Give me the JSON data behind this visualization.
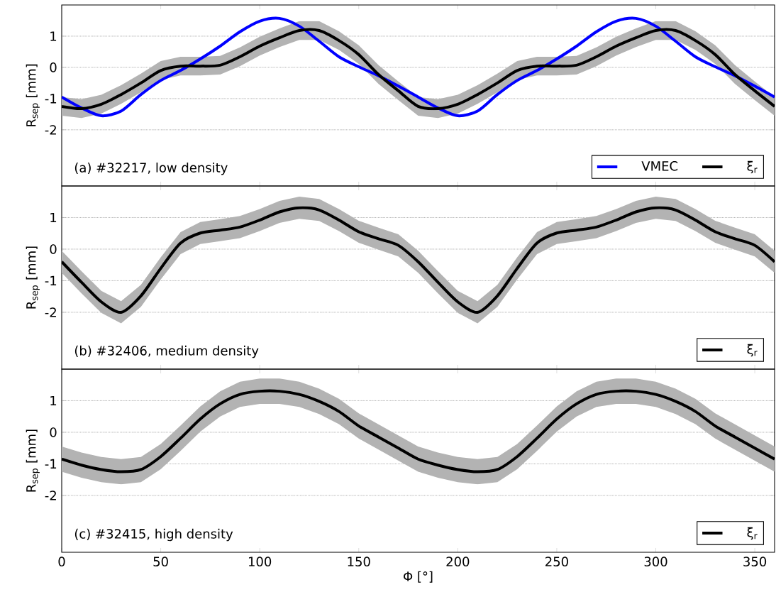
{
  "chart_data": [
    {
      "type": "line",
      "ylabel": "R$_{sep}$ [mm]",
      "annotations": [
        "(a) #32217, low density"
      ],
      "x": [
        0,
        10,
        20,
        30,
        40,
        50,
        60,
        70,
        80,
        90,
        100,
        110,
        120,
        130,
        140,
        150,
        160,
        170,
        180,
        190,
        200,
        210,
        220,
        230,
        240,
        250,
        260,
        270,
        280,
        290,
        300,
        310,
        320,
        330,
        340,
        350,
        360
      ],
      "xlim": [
        0,
        360
      ],
      "ylim": [
        -3.8,
        2
      ],
      "xticks": [
        0,
        50,
        100,
        150,
        200,
        250,
        300,
        350
      ],
      "yticks": [
        -2,
        -1,
        0,
        1
      ],
      "tick_labels": "y",
      "grid": "y",
      "legend": "bottom right",
      "series": [
        {
          "name": "VMEC",
          "color": "#0000ff",
          "values": [
            -0.95,
            -1.3,
            -1.55,
            -1.4,
            -0.87,
            -0.42,
            -0.1,
            0.27,
            0.68,
            1.14,
            1.48,
            1.57,
            1.32,
            0.84,
            0.34,
            0.02,
            -0.27,
            -0.6,
            -0.95,
            -1.3,
            -1.55,
            -1.4,
            -0.87,
            -0.42,
            -0.1,
            0.27,
            0.68,
            1.14,
            1.48,
            1.57,
            1.32,
            0.84,
            0.34,
            0.02,
            -0.27,
            -0.6,
            -0.95
          ]
        },
        {
          "name": "ξ$_{r}$",
          "color": "#000000",
          "values": [
            -1.25,
            -1.32,
            -1.18,
            -0.87,
            -0.5,
            -0.1,
            0.04,
            0.04,
            0.07,
            0.34,
            0.68,
            0.95,
            1.18,
            1.18,
            0.86,
            0.41,
            -0.23,
            -0.75,
            -1.25,
            -1.32,
            -1.18,
            -0.87,
            -0.5,
            -0.1,
            0.04,
            0.04,
            0.07,
            0.34,
            0.68,
            0.95,
            1.18,
            1.18,
            0.86,
            0.41,
            -0.23,
            -0.75,
            -1.25
          ],
          "lower": [
            -1.55,
            -1.62,
            -1.48,
            -1.17,
            -0.8,
            -0.4,
            -0.26,
            -0.26,
            -0.23,
            0.04,
            0.38,
            0.65,
            0.88,
            0.88,
            0.56,
            0.11,
            -0.53,
            -1.05,
            -1.55,
            -1.62,
            -1.48,
            -1.17,
            -0.8,
            -0.4,
            -0.26,
            -0.26,
            -0.23,
            0.04,
            0.38,
            0.65,
            0.88,
            0.88,
            0.56,
            0.11,
            -0.53,
            -1.05,
            -1.55
          ],
          "upper": [
            -0.95,
            -1.02,
            -0.88,
            -0.57,
            -0.2,
            0.2,
            0.34,
            0.34,
            0.37,
            0.64,
            0.98,
            1.25,
            1.48,
            1.48,
            1.16,
            0.71,
            0.07,
            -0.45,
            -0.95,
            -1.02,
            -0.88,
            -0.57,
            -0.2,
            0.2,
            0.34,
            0.34,
            0.37,
            0.64,
            0.98,
            1.25,
            1.48,
            1.48,
            1.16,
            0.71,
            0.07,
            -0.45,
            -0.95
          ]
        }
      ]
    },
    {
      "type": "line",
      "ylabel": "R$_{sep}$ [mm]",
      "annotations": [
        "(b) #32406, medium density"
      ],
      "x": [
        0,
        10,
        20,
        30,
        40,
        50,
        60,
        70,
        80,
        90,
        100,
        110,
        120,
        130,
        140,
        150,
        160,
        170,
        180,
        190,
        200,
        210,
        220,
        230,
        240,
        250,
        260,
        270,
        280,
        290,
        300,
        310,
        320,
        330,
        340,
        350,
        360
      ],
      "xlim": [
        0,
        360
      ],
      "ylim": [
        -3.8,
        2
      ],
      "xticks": [
        0,
        50,
        100,
        150,
        200,
        250,
        300,
        350
      ],
      "yticks": [
        -2,
        -1,
        0,
        1
      ],
      "tick_labels": "y",
      "grid": "y",
      "legend": "bottom right",
      "series": [
        {
          "name": "ξ$_{r}$",
          "color": "#000000",
          "values": [
            -0.4,
            -1.05,
            -1.67,
            -2.0,
            -1.48,
            -0.61,
            0.19,
            0.51,
            0.6,
            0.7,
            0.92,
            1.18,
            1.31,
            1.24,
            0.92,
            0.55,
            0.33,
            0.12,
            -0.4,
            -1.05,
            -1.67,
            -2.0,
            -1.48,
            -0.61,
            0.19,
            0.51,
            0.6,
            0.7,
            0.92,
            1.18,
            1.31,
            1.24,
            0.92,
            0.55,
            0.33,
            0.12,
            -0.4
          ],
          "lower": [
            -0.75,
            -1.4,
            -2.02,
            -2.35,
            -1.83,
            -0.96,
            -0.16,
            0.16,
            0.25,
            0.35,
            0.57,
            0.83,
            0.96,
            0.89,
            0.57,
            0.2,
            -0.02,
            -0.23,
            -0.75,
            -1.4,
            -2.02,
            -2.35,
            -1.83,
            -0.96,
            -0.16,
            0.16,
            0.25,
            0.35,
            0.57,
            0.83,
            0.96,
            0.89,
            0.57,
            0.2,
            -0.02,
            -0.23,
            -0.75
          ],
          "upper": [
            -0.05,
            -0.7,
            -1.32,
            -1.65,
            -1.13,
            -0.26,
            0.54,
            0.86,
            0.95,
            1.05,
            1.27,
            1.53,
            1.66,
            1.59,
            1.27,
            0.9,
            0.68,
            0.47,
            -0.05,
            -0.7,
            -1.32,
            -1.65,
            -1.13,
            -0.26,
            0.54,
            0.86,
            0.95,
            1.05,
            1.27,
            1.53,
            1.66,
            1.59,
            1.27,
            0.9,
            0.68,
            0.47,
            -0.05
          ]
        }
      ]
    },
    {
      "type": "line",
      "ylabel": "R$_{sep}$ [mm]",
      "xlabel": "Φ [°]",
      "annotations": [
        "(c) #32415, high density"
      ],
      "x": [
        0,
        10,
        20,
        30,
        40,
        50,
        60,
        70,
        80,
        90,
        100,
        110,
        120,
        130,
        140,
        150,
        160,
        170,
        180,
        190,
        200,
        210,
        220,
        230,
        240,
        250,
        260,
        270,
        280,
        290,
        300,
        310,
        320,
        330,
        340,
        350,
        360
      ],
      "xlim": [
        0,
        360
      ],
      "ylim": [
        -3.8,
        2
      ],
      "xticks": [
        0,
        50,
        100,
        150,
        200,
        250,
        300,
        350
      ],
      "yticks": [
        -2,
        -1,
        0,
        1
      ],
      "grid": "y",
      "legend": "bottom right",
      "series": [
        {
          "name": "ξ$_{r}$",
          "color": "#000000",
          "values": [
            -0.85,
            -1.04,
            -1.18,
            -1.25,
            -1.18,
            -0.77,
            -0.19,
            0.42,
            0.9,
            1.2,
            1.3,
            1.3,
            1.2,
            0.98,
            0.66,
            0.2,
            -0.15,
            -0.5,
            -0.85,
            -1.04,
            -1.18,
            -1.25,
            -1.18,
            -0.77,
            -0.19,
            0.42,
            0.9,
            1.2,
            1.3,
            1.3,
            1.2,
            0.98,
            0.66,
            0.2,
            -0.15,
            -0.5,
            -0.85
          ],
          "lower": [
            -1.25,
            -1.44,
            -1.58,
            -1.65,
            -1.58,
            -1.17,
            -0.59,
            0.02,
            0.5,
            0.8,
            0.9,
            0.9,
            0.8,
            0.58,
            0.26,
            -0.2,
            -0.55,
            -0.9,
            -1.25,
            -1.44,
            -1.58,
            -1.65,
            -1.58,
            -1.17,
            -0.59,
            0.02,
            0.5,
            0.8,
            0.9,
            0.9,
            0.8,
            0.58,
            0.26,
            -0.2,
            -0.55,
            -0.9,
            -1.25
          ],
          "upper": [
            -0.45,
            -0.64,
            -0.78,
            -0.85,
            -0.78,
            -0.37,
            0.21,
            0.82,
            1.3,
            1.6,
            1.7,
            1.7,
            1.6,
            1.38,
            1.06,
            0.6,
            0.25,
            -0.1,
            -0.45,
            -0.64,
            -0.78,
            -0.85,
            -0.78,
            -0.37,
            0.21,
            0.82,
            1.3,
            1.6,
            1.7,
            1.7,
            1.6,
            1.38,
            1.06,
            0.6,
            0.25,
            -0.1,
            -0.45
          ]
        }
      ]
    }
  ]
}
